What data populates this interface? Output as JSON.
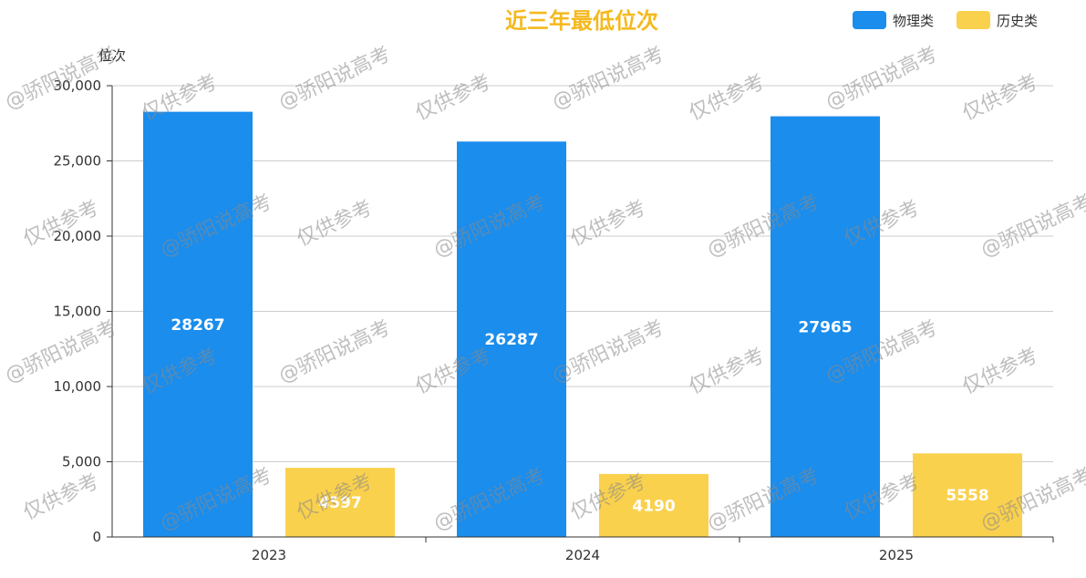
{
  "chart_data": {
    "type": "bar",
    "title": "近三年最低位次",
    "ylabel": "位次",
    "categories": [
      "2023",
      "2024",
      "2025"
    ],
    "series": [
      {
        "name": "物理类",
        "values": [
          28267,
          26287,
          27965
        ],
        "color": "#1a8ded"
      },
      {
        "name": "历史类",
        "values": [
          4597,
          4190,
          5558
        ],
        "color": "#fad14d"
      }
    ],
    "ylim": [
      0,
      30000
    ],
    "yticks": [
      0,
      5000,
      10000,
      15000,
      20000,
      25000,
      30000
    ],
    "ytick_labels": [
      "0",
      "5,000",
      "10,000",
      "15,000",
      "20,000",
      "25,000",
      "30,000"
    ],
    "grid": true,
    "legend_position": "top-right",
    "title_color": "#f5b91e",
    "data_labels": true
  },
  "watermarks": [
    "@骄阳说高考",
    "仅供参考"
  ]
}
